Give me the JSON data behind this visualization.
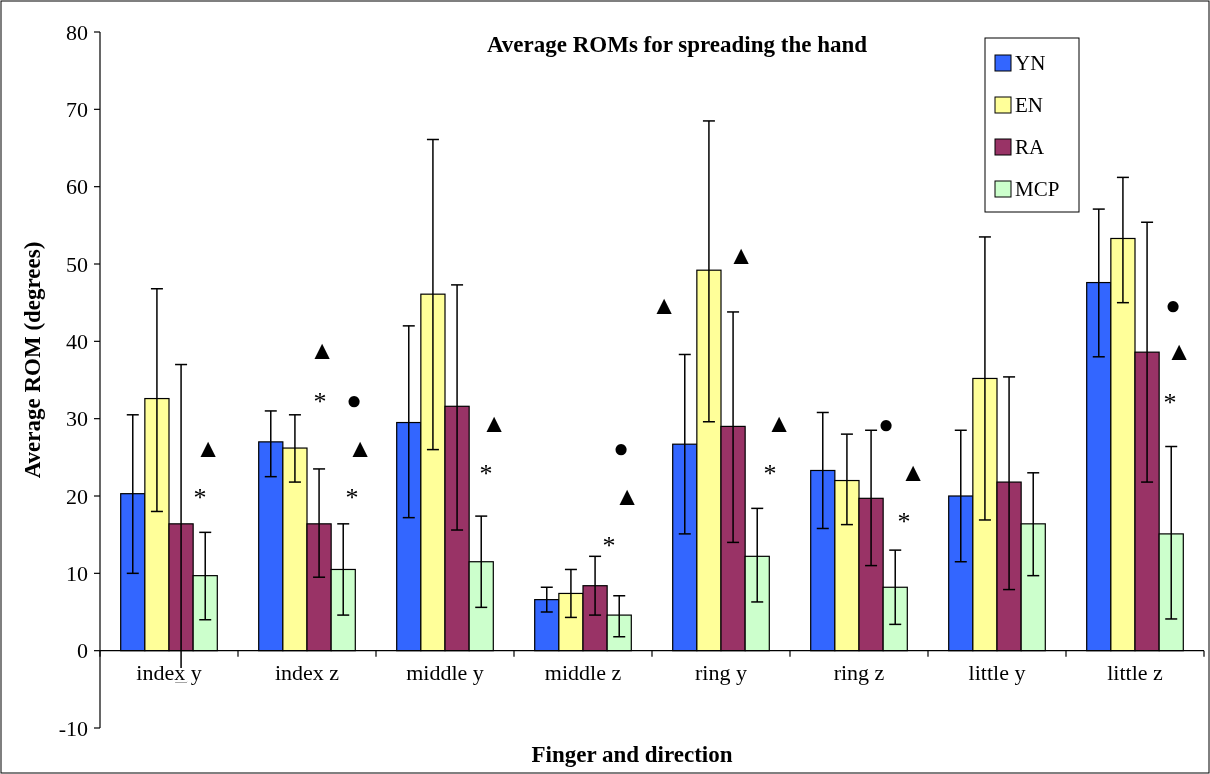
{
  "chart_data": {
    "type": "bar",
    "title": "Average ROMs for spreading the hand",
    "xlabel": "Finger and direction",
    "ylabel": "Average ROM (degrees)",
    "categories": [
      "index y",
      "index z",
      "middle y",
      "middle z",
      "ring y",
      "ring z",
      "little y",
      "little z"
    ],
    "series": [
      {
        "name": "YN",
        "color": "#3366ff",
        "values": [
          20.3,
          27,
          29.5,
          6.6,
          26.7,
          23.3,
          20,
          47.6
        ],
        "errors": [
          [
            10,
            30.5
          ],
          [
            22.5,
            31
          ],
          [
            17.2,
            42
          ],
          [
            5,
            8.2
          ],
          [
            15.1,
            38.3
          ],
          [
            15.8,
            30.8
          ],
          [
            11.5,
            28.5
          ],
          [
            38,
            57.1
          ]
        ]
      },
      {
        "name": "EN",
        "color": "#ffff99",
        "values": [
          32.6,
          26.2,
          46.1,
          7.4,
          49.2,
          22,
          35.2,
          53.3
        ],
        "errors": [
          [
            18,
            46.8
          ],
          [
            21.8,
            30.5
          ],
          [
            26,
            66.1
          ],
          [
            4.3,
            10.5
          ],
          [
            29.6,
            68.5
          ],
          [
            16.3,
            28
          ],
          [
            16.9,
            53.5
          ],
          [
            45,
            61.2
          ]
        ]
      },
      {
        "name": "RA",
        "color": "#993366",
        "values": [
          16.4,
          16.4,
          31.6,
          8.4,
          29,
          19.7,
          21.8,
          38.6
        ],
        "errors": [
          [
            -4,
            37
          ],
          [
            9.5,
            23.5
          ],
          [
            15.6,
            47.3
          ],
          [
            4.6,
            12.2
          ],
          [
            14,
            43.8
          ],
          [
            11,
            28.5
          ],
          [
            7.9,
            35.4
          ],
          [
            21.8,
            55.4
          ]
        ]
      },
      {
        "name": "MCP",
        "color": "#ccffcc",
        "values": [
          9.7,
          10.5,
          11.5,
          4.6,
          12.2,
          8.2,
          16.4,
          15.1
        ],
        "errors": [
          [
            4,
            15.3
          ],
          [
            4.6,
            16.4
          ],
          [
            5.6,
            17.4
          ],
          [
            1.8,
            7.1
          ],
          [
            6.3,
            18.4
          ],
          [
            3.4,
            13
          ],
          [
            9.7,
            23
          ],
          [
            4.1,
            26.4
          ]
        ]
      }
    ],
    "ylim": [
      -10,
      80
    ],
    "yticks": [
      -10,
      0,
      10,
      20,
      30,
      40,
      50,
      60,
      70,
      80
    ],
    "grid": false,
    "legend": "top right",
    "annotations": [
      "▲",
      "*",
      "▲",
      "*",
      "●",
      "▲",
      "*",
      "▲",
      "*",
      "●",
      "▲",
      "*",
      "▲",
      "▲",
      "▲",
      "*",
      "●",
      "▲",
      "*",
      "●",
      "▲",
      "*"
    ]
  }
}
